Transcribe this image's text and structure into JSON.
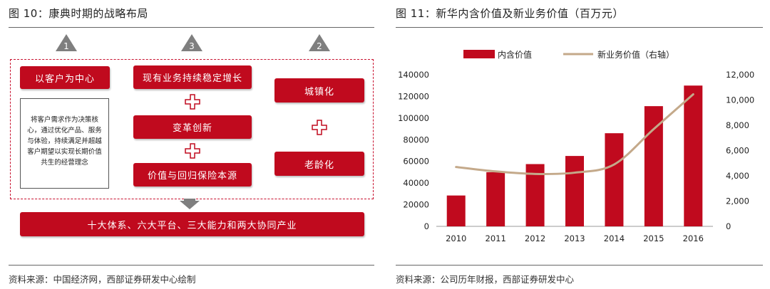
{
  "left": {
    "title": "图 10：康典时期的战略布局",
    "source": "资料来源：中国经济网，西部证券研发中心绘制",
    "triangles": [
      "1",
      "3",
      "2"
    ],
    "customer_center": "以客户为中心",
    "customer_desc": "将客户需求作为决策核心，通过优化产品、服务与体验，持续满足并超越客户期望以实现长期价值共生的经营理念",
    "stable_growth": "现有业务持续稳定增长",
    "reform": "变革创新",
    "return_insurance": "价值与回归保险本源",
    "urbanization": "城镇化",
    "aging": "老龄化",
    "bottom_bar": "十大体系、六大平台、三大能力和两大协同产业"
  },
  "right": {
    "title": "图 11：新华内含价值及新业务价值（百万元）",
    "source": "资料来源：公司历年财报，西部证券研发中心"
  },
  "colors": {
    "red": "#c00a1e",
    "line": "#c4a98a",
    "grey": "#7f7f7f"
  },
  "chart_data": {
    "type": "bar",
    "categories": [
      "2010",
      "2011",
      "2012",
      "2013",
      "2014",
      "2015",
      "2016"
    ],
    "series": [
      {
        "name": "内含价值",
        "type": "bar",
        "axis": "left",
        "values": [
          28500,
          50000,
          57500,
          65000,
          86000,
          111000,
          130000
        ]
      },
      {
        "name": "新业务价值（右轴）",
        "type": "line",
        "axis": "right",
        "values": [
          4700,
          4350,
          4150,
          4250,
          4900,
          7700,
          10450
        ]
      }
    ],
    "y_left": {
      "min": 0,
      "max": 140000,
      "step": 20000,
      "ticks": [
        "0",
        "20000",
        "40000",
        "60000",
        "80000",
        "100000",
        "120000",
        "140000"
      ]
    },
    "y_right": {
      "min": 0,
      "max": 12000,
      "step": 2000,
      "ticks": [
        "0",
        "2,000",
        "4,000",
        "6,000",
        "8,000",
        "10,000",
        "12,000"
      ]
    },
    "legend_position": "top",
    "grid": false
  }
}
